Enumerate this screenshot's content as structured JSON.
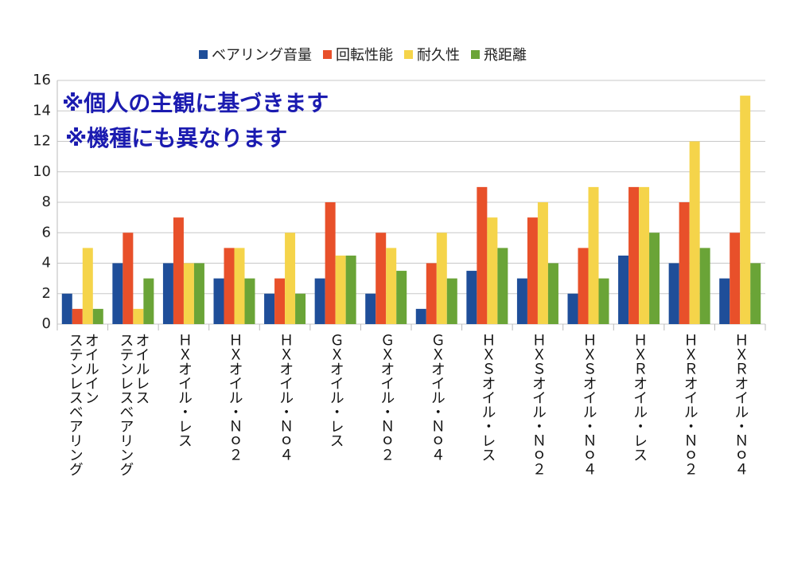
{
  "chart_data": {
    "type": "bar",
    "annotations": [
      "※個人の主観に基づきます",
      "※機種にも異なります"
    ],
    "categories": [
      "オイルイン\nステンレスベアリング",
      "オイルレス\nステンレスベアリング",
      "ＨＸオイル・レス",
      "ＨＸオイル・Ｎｏ２",
      "ＨＸオイル・Ｎｏ４",
      "ＧＸオイル・レス",
      "ＧＸオイル・Ｎｏ２",
      "ＧＸオイル・Ｎｏ４",
      "ＨＸＳオイル・レス",
      "ＨＸＳオイル・Ｎｏ２",
      "ＨＸＳオイル・Ｎｏ４",
      "ＨＸＲオイル・レス",
      "ＨＸＲオイル・Ｎｏ２",
      "ＨＸＲオイル・Ｎｏ４"
    ],
    "series": [
      {
        "name": "ベアリング音量",
        "color": "#1f4e99",
        "values": [
          2,
          4,
          4,
          3,
          2,
          3,
          2,
          1,
          3.5,
          3,
          2,
          4.5,
          4,
          3
        ]
      },
      {
        "name": "回転性能",
        "color": "#e8502a",
        "values": [
          1,
          6,
          7,
          5,
          3,
          8,
          6,
          4,
          9,
          7,
          5,
          9,
          8,
          6
        ]
      },
      {
        "name": "耐久性",
        "color": "#f5d44a",
        "values": [
          5,
          1,
          4,
          5,
          6,
          4.5,
          5,
          6,
          7,
          8,
          9,
          9,
          12,
          15
        ]
      },
      {
        "name": "飛距離",
        "color": "#6aa437",
        "values": [
          1,
          3,
          4,
          3,
          2,
          4.5,
          3.5,
          3,
          5,
          4,
          3,
          6,
          5,
          4
        ]
      }
    ],
    "ylim": [
      0,
      16
    ],
    "yticks": [
      0,
      2,
      4,
      6,
      8,
      10,
      12,
      14,
      16
    ],
    "grid": true,
    "legend": "top"
  }
}
